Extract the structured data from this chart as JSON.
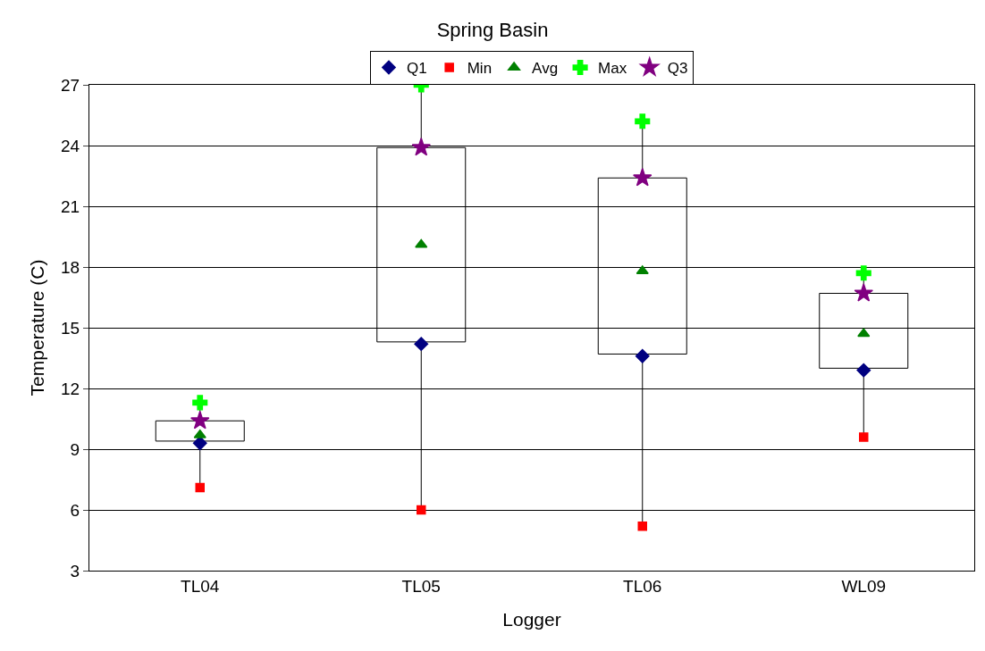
{
  "chart_data": {
    "type": "box",
    "title": "Spring Basin",
    "xlabel": "Logger",
    "ylabel": "Temperature (C)",
    "categories": [
      "TL04",
      "TL05",
      "TL06",
      "WL09"
    ],
    "boxes": [
      {
        "low": 7.1,
        "q1": 9.4,
        "q3": 10.4,
        "high": 11.3
      },
      {
        "low": 6.0,
        "q1": 14.3,
        "q3": 23.9,
        "high": 27.0
      },
      {
        "low": 5.2,
        "q1": 13.7,
        "q3": 22.4,
        "high": 25.2
      },
      {
        "low": 9.6,
        "q1": 13.0,
        "q3": 16.7,
        "high": 17.7
      }
    ],
    "series": [
      {
        "name": "Q1",
        "type": "scatter",
        "marker": "diamond",
        "color": "#000080",
        "values": [
          9.3,
          14.2,
          13.6,
          12.9
        ]
      },
      {
        "name": "Min",
        "type": "scatter",
        "marker": "square",
        "color": "#ff0000",
        "values": [
          7.1,
          6.0,
          5.2,
          9.6
        ]
      },
      {
        "name": "Avg",
        "type": "scatter",
        "marker": "triangle",
        "color": "#008000",
        "values": [
          9.7,
          19.1,
          17.8,
          14.7
        ]
      },
      {
        "name": "Max",
        "type": "scatter",
        "marker": "cross",
        "color": "#00ff00",
        "values": [
          11.3,
          27.0,
          25.2,
          17.7
        ]
      },
      {
        "name": "Q3",
        "type": "scatter",
        "marker": "star",
        "color": "#800080",
        "values": [
          10.4,
          23.9,
          22.4,
          16.7
        ]
      }
    ],
    "ylim": [
      3,
      27
    ],
    "yticks": [
      3,
      6,
      9,
      12,
      15,
      18,
      21,
      24,
      27
    ],
    "grid": "y",
    "legend": "top"
  }
}
